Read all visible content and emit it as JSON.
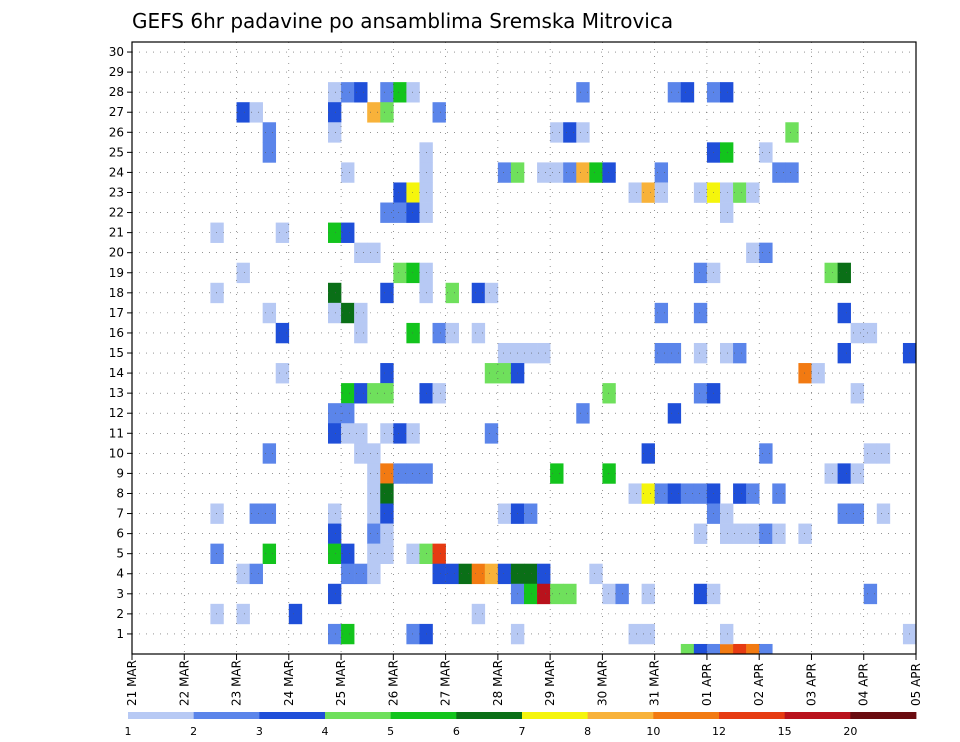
{
  "title": "GEFS 6hr padavine po ansamblima Sremska Mitrovica",
  "chart_data": {
    "type": "heatmap",
    "title": "GEFS 6hr padavine po ansamblima Sremska Mitrovica",
    "ylim": [
      1,
      30
    ],
    "y_ticks": [
      "1",
      "2",
      "3",
      "4",
      "5",
      "6",
      "7",
      "8",
      "9",
      "10",
      "11",
      "12",
      "13",
      "14",
      "15",
      "16",
      "17",
      "18",
      "19",
      "20",
      "21",
      "22",
      "23",
      "24",
      "25",
      "26",
      "27",
      "28",
      "29",
      "30"
    ],
    "x_ticks": [
      "21 MAR",
      "22 MAR",
      "23 MAR",
      "24 MAR",
      "25 MAR",
      "26 MAR",
      "27 MAR",
      "28 MAR",
      "29 MAR",
      "30 MAR",
      "31 MAR",
      "01 APR",
      "02 APR",
      "03 APR",
      "04 APR",
      "05 APR"
    ],
    "time_steps_per_day": 4,
    "num_time_steps": 60,
    "grid": true,
    "legend": "bottom",
    "colorbar": {
      "labels": [
        "1",
        "2",
        "3",
        "4",
        "5",
        "6",
        "7",
        "8",
        "10",
        "12",
        "15",
        "20"
      ],
      "colors": [
        "#b7c9f4",
        "#5b85ea",
        "#1f4fd9",
        "#6fe05c",
        "#13c41d",
        "#0a6f17",
        "#f5f50c",
        "#f8b23a",
        "#f27a12",
        "#e63b12",
        "#b9121c",
        "#6a0b10"
      ]
    },
    "cells": [
      [
        42,
        0,
        4
      ],
      [
        43,
        0,
        3
      ],
      [
        44,
        0,
        2
      ],
      [
        45,
        0,
        9
      ],
      [
        46,
        0,
        10
      ],
      [
        47,
        0,
        9
      ],
      [
        48,
        0,
        2
      ],
      [
        39,
        1,
        1
      ],
      [
        38,
        1,
        1
      ],
      [
        15,
        28,
        1
      ],
      [
        16,
        28,
        2
      ],
      [
        17,
        28,
        3
      ],
      [
        19,
        28,
        2
      ],
      [
        20,
        28,
        5
      ],
      [
        21,
        28,
        1
      ],
      [
        34,
        28,
        2
      ],
      [
        41,
        28,
        2
      ],
      [
        42,
        28,
        3
      ],
      [
        44,
        28,
        2
      ],
      [
        45,
        28,
        3
      ],
      [
        8,
        27,
        3
      ],
      [
        9,
        27,
        1
      ],
      [
        15,
        27,
        3
      ],
      [
        18,
        27,
        8
      ],
      [
        19,
        27,
        4
      ],
      [
        23,
        27,
        2
      ],
      [
        10,
        26,
        2
      ],
      [
        15,
        26,
        1
      ],
      [
        32,
        26,
        1
      ],
      [
        33,
        26,
        3
      ],
      [
        34,
        26,
        1
      ],
      [
        50,
        26,
        4
      ],
      [
        10,
        25,
        2
      ],
      [
        22,
        25,
        1
      ],
      [
        44,
        25,
        3
      ],
      [
        45,
        25,
        5
      ],
      [
        48,
        25,
        1
      ],
      [
        16,
        24,
        1
      ],
      [
        22,
        24,
        1
      ],
      [
        28,
        24,
        2
      ],
      [
        29,
        24,
        4
      ],
      [
        31,
        24,
        1
      ],
      [
        32,
        24,
        1
      ],
      [
        33,
        24,
        2
      ],
      [
        34,
        24,
        8
      ],
      [
        35,
        24,
        5
      ],
      [
        36,
        24,
        3
      ],
      [
        40,
        24,
        2
      ],
      [
        49,
        24,
        2
      ],
      [
        50,
        24,
        2
      ],
      [
        20,
        23,
        3
      ],
      [
        21,
        23,
        7
      ],
      [
        22,
        23,
        1
      ],
      [
        38,
        23,
        1
      ],
      [
        39,
        23,
        8
      ],
      [
        40,
        23,
        1
      ],
      [
        43,
        23,
        1
      ],
      [
        44,
        23,
        7
      ],
      [
        45,
        23,
        1
      ],
      [
        46,
        23,
        4
      ],
      [
        47,
        23,
        1
      ],
      [
        19,
        22,
        2
      ],
      [
        20,
        22,
        2
      ],
      [
        21,
        22,
        3
      ],
      [
        22,
        22,
        1
      ],
      [
        45,
        22,
        1
      ],
      [
        6,
        21,
        1
      ],
      [
        11,
        21,
        1
      ],
      [
        15,
        21,
        5
      ],
      [
        16,
        21,
        3
      ],
      [
        17,
        20,
        1
      ],
      [
        18,
        20,
        1
      ],
      [
        47,
        20,
        1
      ],
      [
        48,
        20,
        2
      ],
      [
        8,
        19,
        1
      ],
      [
        20,
        19,
        4
      ],
      [
        21,
        19,
        5
      ],
      [
        22,
        19,
        1
      ],
      [
        43,
        19,
        2
      ],
      [
        44,
        19,
        1
      ],
      [
        53,
        19,
        4
      ],
      [
        54,
        19,
        6
      ],
      [
        6,
        18,
        1
      ],
      [
        15,
        18,
        6
      ],
      [
        19,
        18,
        3
      ],
      [
        22,
        18,
        1
      ],
      [
        24,
        18,
        4
      ],
      [
        26,
        18,
        3
      ],
      [
        27,
        18,
        1
      ],
      [
        10,
        17,
        1
      ],
      [
        15,
        17,
        1
      ],
      [
        16,
        17,
        6
      ],
      [
        17,
        17,
        1
      ],
      [
        40,
        17,
        2
      ],
      [
        43,
        17,
        2
      ],
      [
        54,
        17,
        3
      ],
      [
        11,
        16,
        3
      ],
      [
        17,
        16,
        1
      ],
      [
        21,
        16,
        5
      ],
      [
        23,
        16,
        2
      ],
      [
        24,
        16,
        1
      ],
      [
        26,
        16,
        1
      ],
      [
        55,
        16,
        1
      ],
      [
        56,
        16,
        1
      ],
      [
        28,
        15,
        1
      ],
      [
        29,
        15,
        1
      ],
      [
        30,
        15,
        1
      ],
      [
        31,
        15,
        1
      ],
      [
        40,
        15,
        2
      ],
      [
        41,
        15,
        2
      ],
      [
        43,
        15,
        1
      ],
      [
        45,
        15,
        1
      ],
      [
        46,
        15,
        2
      ],
      [
        54,
        15,
        3
      ],
      [
        59,
        15,
        3
      ],
      [
        11,
        14,
        1
      ],
      [
        19,
        14,
        3
      ],
      [
        27,
        14,
        4
      ],
      [
        28,
        14,
        4
      ],
      [
        29,
        14,
        3
      ],
      [
        51,
        14,
        9
      ],
      [
        52,
        14,
        1
      ],
      [
        16,
        13,
        5
      ],
      [
        17,
        13,
        3
      ],
      [
        18,
        13,
        4
      ],
      [
        19,
        13,
        4
      ],
      [
        22,
        13,
        3
      ],
      [
        23,
        13,
        1
      ],
      [
        36,
        13,
        4
      ],
      [
        43,
        13,
        2
      ],
      [
        44,
        13,
        3
      ],
      [
        55,
        13,
        1
      ],
      [
        15,
        12,
        2
      ],
      [
        16,
        12,
        2
      ],
      [
        34,
        12,
        2
      ],
      [
        41,
        12,
        3
      ],
      [
        15,
        11,
        3
      ],
      [
        16,
        11,
        1
      ],
      [
        17,
        11,
        1
      ],
      [
        19,
        11,
        1
      ],
      [
        20,
        11,
        3
      ],
      [
        21,
        11,
        1
      ],
      [
        27,
        11,
        2
      ],
      [
        10,
        10,
        2
      ],
      [
        17,
        10,
        1
      ],
      [
        18,
        10,
        1
      ],
      [
        39,
        10,
        3
      ],
      [
        48,
        10,
        2
      ],
      [
        56,
        10,
        1
      ],
      [
        57,
        10,
        1
      ],
      [
        18,
        9,
        1
      ],
      [
        19,
        9,
        9
      ],
      [
        20,
        9,
        2
      ],
      [
        21,
        9,
        2
      ],
      [
        22,
        9,
        2
      ],
      [
        32,
        9,
        5
      ],
      [
        36,
        9,
        5
      ],
      [
        53,
        9,
        1
      ],
      [
        54,
        9,
        3
      ],
      [
        55,
        9,
        1
      ],
      [
        18,
        8,
        1
      ],
      [
        19,
        8,
        6
      ],
      [
        38,
        8,
        1
      ],
      [
        39,
        8,
        7
      ],
      [
        40,
        8,
        2
      ],
      [
        41,
        8,
        3
      ],
      [
        42,
        8,
        2
      ],
      [
        43,
        8,
        2
      ],
      [
        44,
        8,
        3
      ],
      [
        46,
        8,
        3
      ],
      [
        47,
        8,
        2
      ],
      [
        49,
        8,
        2
      ],
      [
        6,
        7,
        1
      ],
      [
        9,
        7,
        2
      ],
      [
        10,
        7,
        2
      ],
      [
        15,
        7,
        1
      ],
      [
        18,
        7,
        1
      ],
      [
        19,
        7,
        3
      ],
      [
        28,
        7,
        1
      ],
      [
        29,
        7,
        3
      ],
      [
        30,
        7,
        2
      ],
      [
        44,
        7,
        2
      ],
      [
        45,
        7,
        1
      ],
      [
        54,
        7,
        2
      ],
      [
        55,
        7,
        2
      ],
      [
        57,
        7,
        1
      ],
      [
        15,
        6,
        3
      ],
      [
        18,
        6,
        2
      ],
      [
        19,
        6,
        1
      ],
      [
        43,
        6,
        1
      ],
      [
        45,
        6,
        1
      ],
      [
        46,
        6,
        1
      ],
      [
        47,
        6,
        1
      ],
      [
        48,
        6,
        2
      ],
      [
        49,
        6,
        1
      ],
      [
        51,
        6,
        1
      ],
      [
        6,
        5,
        2
      ],
      [
        10,
        5,
        5
      ],
      [
        15,
        5,
        5
      ],
      [
        16,
        5,
        3
      ],
      [
        18,
        5,
        1
      ],
      [
        19,
        5,
        1
      ],
      [
        21,
        5,
        1
      ],
      [
        22,
        5,
        4
      ],
      [
        23,
        5,
        10
      ],
      [
        8,
        4,
        1
      ],
      [
        9,
        4,
        2
      ],
      [
        16,
        4,
        2
      ],
      [
        17,
        4,
        2
      ],
      [
        18,
        4,
        1
      ],
      [
        23,
        4,
        3
      ],
      [
        24,
        4,
        3
      ],
      [
        25,
        4,
        6
      ],
      [
        26,
        4,
        9
      ],
      [
        27,
        4,
        8
      ],
      [
        28,
        4,
        3
      ],
      [
        29,
        4,
        6
      ],
      [
        30,
        4,
        6
      ],
      [
        31,
        4,
        3
      ],
      [
        35,
        4,
        1
      ],
      [
        15,
        3,
        3
      ],
      [
        29,
        3,
        2
      ],
      [
        30,
        3,
        5
      ],
      [
        31,
        3,
        11
      ],
      [
        32,
        3,
        4
      ],
      [
        33,
        3,
        4
      ],
      [
        36,
        3,
        1
      ],
      [
        37,
        3,
        2
      ],
      [
        39,
        3,
        1
      ],
      [
        43,
        3,
        3
      ],
      [
        44,
        3,
        1
      ],
      [
        56,
        3,
        2
      ],
      [
        6,
        2,
        1
      ],
      [
        8,
        2,
        1
      ],
      [
        12,
        2,
        3
      ],
      [
        26,
        2,
        1
      ],
      [
        15,
        1,
        2
      ],
      [
        16,
        1,
        5
      ],
      [
        21,
        1,
        2
      ],
      [
        22,
        1,
        3
      ],
      [
        29,
        1,
        1
      ],
      [
        45,
        1,
        1
      ],
      [
        59,
        1,
        1
      ]
    ]
  }
}
